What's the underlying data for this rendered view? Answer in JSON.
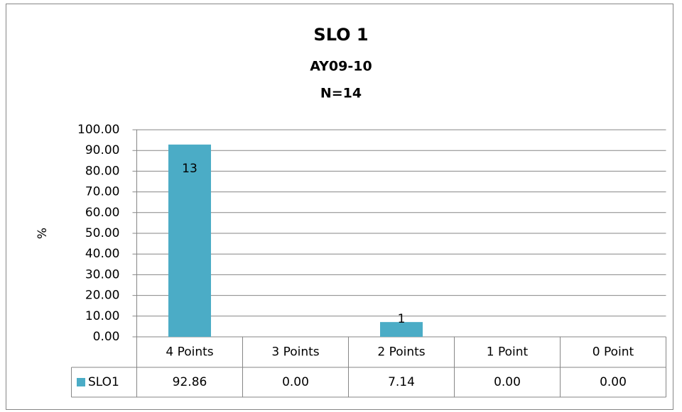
{
  "chart_data": {
    "type": "bar",
    "title": "SLO 1",
    "subtitle": "AY09-10",
    "note": "N=14",
    "y_label": "%",
    "categories": [
      "4 Points",
      "3 Points",
      "2 Points",
      "1 Point",
      "0 Point"
    ],
    "series": [
      {
        "name": "SLO1",
        "color": "#4bacc6",
        "values": [
          92.86,
          0,
          7.14,
          0,
          0
        ],
        "value_labels": [
          "92.86",
          "0.00",
          "7.14",
          "0.00",
          "0.00"
        ],
        "count_labels": [
          13,
          null,
          1,
          null,
          null
        ]
      }
    ],
    "ylim": [
      0,
      100
    ],
    "yticks": [
      {
        "value": 0,
        "label": "0.00"
      },
      {
        "value": 10,
        "label": "10.00"
      },
      {
        "value": 20,
        "label": "20.00"
      },
      {
        "value": 30,
        "label": "30.00"
      },
      {
        "value": 40,
        "label": "40.00"
      },
      {
        "value": 50,
        "label": "50.00"
      },
      {
        "value": 60,
        "label": "60.00"
      },
      {
        "value": 70,
        "label": "70.00"
      },
      {
        "value": 80,
        "label": "80.00"
      },
      {
        "value": 90,
        "label": "90.00"
      },
      {
        "value": 100,
        "label": "100.00"
      }
    ],
    "grid": true
  }
}
